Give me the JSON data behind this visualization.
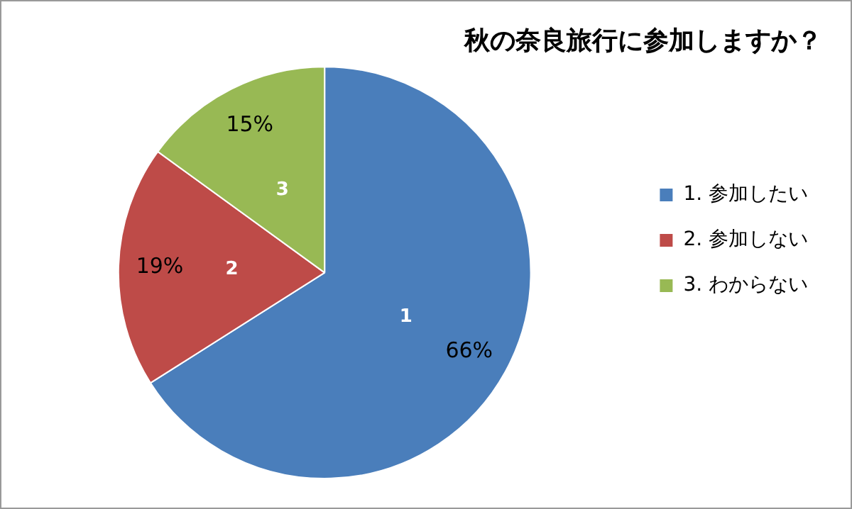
{
  "chart_data": {
    "type": "pie",
    "title": "秋の奈良旅行に参加しますか？",
    "categories": [
      "1. 参加したい",
      "2. 参加しない",
      "3. わからない"
    ],
    "values": [
      66,
      19,
      15
    ],
    "colors": [
      "#4a7ebb",
      "#be4b48",
      "#98b954"
    ],
    "value_labels": [
      "66%",
      "19%",
      "15%"
    ],
    "annotations": [
      "1",
      "2",
      "3"
    ],
    "legend": "right"
  }
}
